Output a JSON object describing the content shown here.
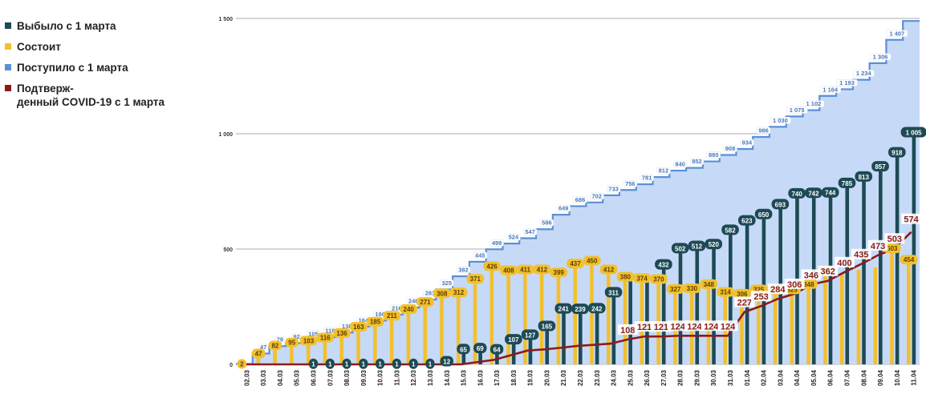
{
  "legend": {
    "items": [
      {
        "label": "Выбыло с 1 марта",
        "color": "#1d4a55"
      },
      {
        "label": "Состоит",
        "color": "#f2c02e"
      },
      {
        "label": "Поступило с 1 марта",
        "color": "#5b8fd6"
      },
      {
        "label": "Подтверж-\nденный COVID-19 с 1 марта",
        "color": "#8b1a1a"
      }
    ]
  },
  "colors": {
    "discharged": "#1d4a55",
    "current": "#f2c02e",
    "admitted_line": "#5b8fd6",
    "admitted_fill": "#c6daf7",
    "covid": "#8b1a1a",
    "grid": "#c8c8c8"
  },
  "chart_data": {
    "type": "bar",
    "ylim": [
      0,
      1500
    ],
    "yticks": [
      0,
      500,
      1000,
      1500
    ],
    "ytick_labels": [
      "0",
      "500",
      "1 000",
      "1 500"
    ],
    "grid": true,
    "legend_position": "left",
    "categories": [
      "02.03",
      "03.03",
      "04.03",
      "05.03",
      "06.03",
      "07.03",
      "08.03",
      "09.03",
      "10.03",
      "11.03",
      "12.03",
      "13.03",
      "14.03",
      "15.03",
      "16.03",
      "17.03",
      "18.03",
      "19.03",
      "20.03",
      "21.03",
      "22.03",
      "23.03",
      "24.03",
      "25.03",
      "26.03",
      "27.03",
      "28.03",
      "29.03",
      "30.03",
      "31.03",
      "01.04",
      "02.04",
      "03.04",
      "04.04",
      "05.04",
      "06.04",
      "07.04",
      "08.04",
      "09.04",
      "10.04",
      "11.04"
    ],
    "series": [
      {
        "name": "Выбыло с 1 марта",
        "type": "bar",
        "values": [
          0,
          0,
          0,
          0,
          1,
          1,
          1,
          1,
          1,
          1,
          1,
          1,
          12,
          65,
          69,
          64,
          107,
          127,
          165,
          241,
          239,
          242,
          311,
          360,
          367,
          432,
          502,
          512,
          520,
          582,
          623,
          650,
          693,
          740,
          742,
          744,
          785,
          813,
          857,
          918,
          1005
        ],
        "labels": [
          "",
          "",
          "",
          "",
          "1",
          "1",
          "1",
          "1",
          "1",
          "1",
          "1",
          "1",
          "12",
          "65",
          "69",
          "64",
          "107",
          "127",
          "165",
          "241",
          "239",
          "242",
          "311",
          "",
          "",
          "432",
          "502",
          "512",
          "520",
          "582",
          "623",
          "650",
          "693",
          "740",
          "742",
          "744",
          "785",
          "813",
          "857",
          "918",
          "1 005"
        ]
      },
      {
        "name": "Состоит",
        "type": "bar",
        "values": [
          2,
          47,
          82,
          95,
          103,
          116,
          136,
          163,
          185,
          211,
          240,
          271,
          308,
          312,
          371,
          426,
          408,
          411,
          412,
          399,
          437,
          450,
          412,
          380,
          374,
          370,
          327,
          330,
          348,
          314,
          306,
          325,
          324,
          325,
          348,
          405,
          390,
          410,
          420,
          503,
          454
        ],
        "labels": [
          "2",
          "47",
          "82",
          "95",
          "103",
          "116",
          "136",
          "163",
          "185",
          "211",
          "240",
          "271",
          "308",
          "312",
          "371",
          "426",
          "408",
          "411",
          "412",
          "399",
          "437",
          "450",
          "412",
          "380",
          "374",
          "370",
          "327",
          "330",
          "348",
          "314",
          "306",
          "325",
          "324",
          "325",
          "348",
          "405",
          "",
          "",
          "",
          "503",
          "454"
        ]
      },
      {
        "name": "Поступило с 1 марта",
        "type": "area",
        "values": [
          2,
          47,
          79,
          92,
          105,
          118,
          138,
          164,
          190,
          216,
          246,
          281,
          325,
          382,
          445,
          499,
          524,
          547,
          586,
          649,
          686,
          702,
          733,
          756,
          781,
          812,
          840,
          852,
          880,
          908,
          934,
          986,
          1030,
          1075,
          1102,
          1164,
          1193,
          1234,
          1306,
          1407,
          1489
        ],
        "labels": [
          "",
          "47",
          "79",
          "92",
          "105",
          "118",
          "138",
          "164",
          "190",
          "216",
          "246",
          "281",
          "325",
          "382",
          "445",
          "499",
          "524",
          "547",
          "586",
          "649",
          "686",
          "702",
          "733",
          "756",
          "781",
          "812",
          "840",
          "852",
          "880",
          "908",
          "934",
          "986",
          "1 030",
          "1 075",
          "1 102",
          "1 164",
          "1 193",
          "1 234",
          "1 306",
          "1 407",
          ""
        ]
      },
      {
        "name": "Подтверж-\nденный COVID-19 с 1 марта",
        "type": "line",
        "values": [
          0,
          0,
          0,
          0,
          0,
          0,
          0,
          0,
          0,
          0,
          0,
          0,
          0,
          0,
          10,
          20,
          40,
          60,
          65,
          72,
          80,
          85,
          90,
          108,
          121,
          121,
          124,
          124,
          124,
          124,
          227,
          253,
          284,
          306,
          346,
          362,
          400,
          435,
          473,
          503,
          574
        ],
        "labels": [
          "",
          "",
          "",
          "",
          "",
          "",
          "",
          "",
          "",
          "",
          "",
          "",
          "",
          "",
          "",
          "",
          "",
          "",
          "",
          "",
          "",
          "",
          "",
          "108",
          "121",
          "121",
          "124",
          "124",
          "124",
          "124",
          "227",
          "253",
          "284",
          "306",
          "346",
          "362",
          "400",
          "435",
          "473",
          "503",
          "574"
        ]
      }
    ]
  }
}
